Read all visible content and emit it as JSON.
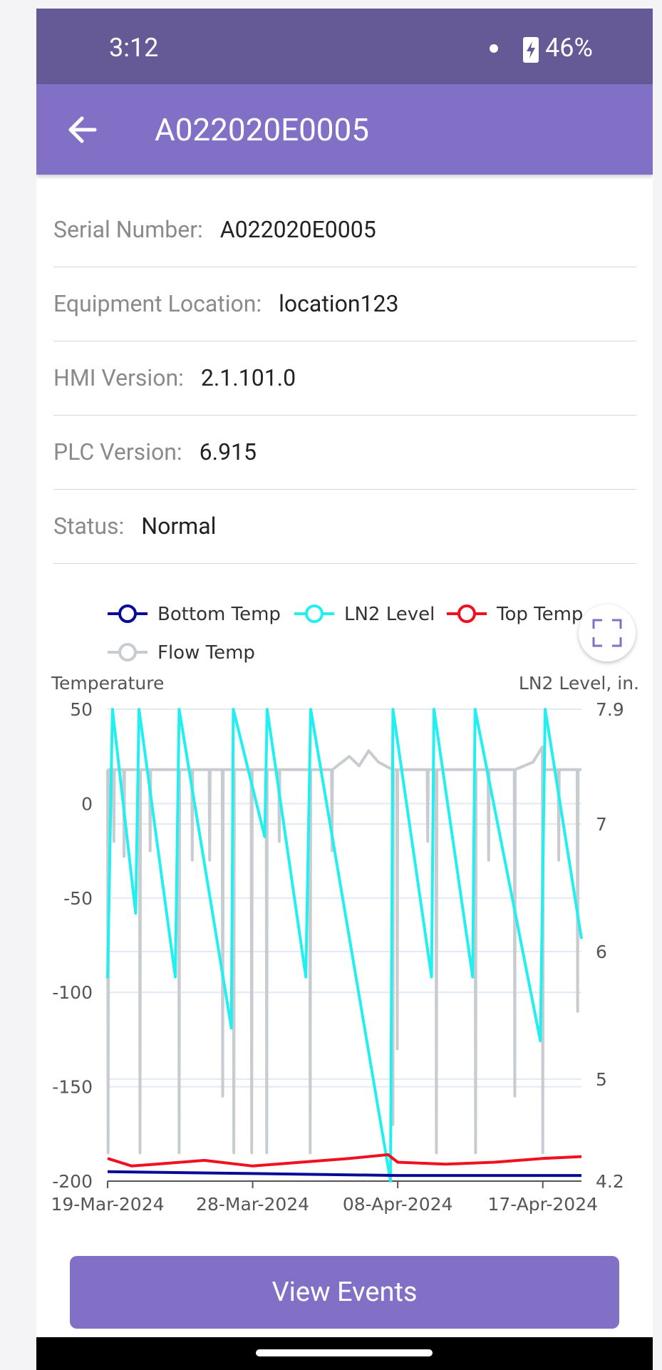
{
  "status_bar": {
    "time": "3:12",
    "battery": "46%"
  },
  "app_bar": {
    "title": "A022020E0005"
  },
  "details": [
    {
      "label": "Serial Number:",
      "value": "A022020E0005"
    },
    {
      "label": "Equipment Location:",
      "value": "location123"
    },
    {
      "label": "HMI Version:",
      "value": "2.1.101.0"
    },
    {
      "label": "PLC Version:",
      "value": "6.915"
    },
    {
      "label": "Status:",
      "value": "Normal"
    }
  ],
  "chart_data": {
    "type": "line",
    "ylabel": "Temperature",
    "y2label": "LN2 Level, in.",
    "xlim": [
      0,
      98
    ],
    "xticks": [
      {
        "value": 0,
        "label": "19-Mar-2024"
      },
      {
        "value": 30,
        "label": "28-Mar-2024"
      },
      {
        "value": 60,
        "label": "08-Apr-2024"
      },
      {
        "value": 90,
        "label": "17-Apr-2024"
      }
    ],
    "ylim": [
      -200,
      50
    ],
    "yticks": [
      50,
      0,
      -50,
      -100,
      -150,
      -200
    ],
    "y2lim": [
      4.2,
      7.9
    ],
    "y2ticks": [
      7.9,
      7,
      6,
      5,
      4.2
    ],
    "grid": true,
    "series": [
      {
        "name": "Bottom Temp",
        "color": "#0a0a96",
        "x": [
          0,
          30,
          60,
          90,
          98
        ],
        "values": [
          -195,
          -196,
          -197,
          -197,
          -197
        ]
      },
      {
        "name": "LN2 Level",
        "color": "#22f0f0",
        "axis": "y2",
        "x": [
          0,
          1,
          5.8,
          6.5,
          14,
          14.8,
          25.6,
          26,
          32.5,
          33,
          41,
          42,
          58.5,
          59,
          67,
          67.5,
          75.5,
          76,
          89.5,
          90.5,
          98
        ],
        "values": [
          5.79,
          7.9,
          6.3,
          7.9,
          5.8,
          7.9,
          5.4,
          7.9,
          6.9,
          7.9,
          5.8,
          7.9,
          4.2,
          7.9,
          5.8,
          7.9,
          5.8,
          7.9,
          5.3,
          7.9,
          6.1
        ]
      },
      {
        "name": "Top Temp",
        "color": "#f01020",
        "x": [
          0,
          5,
          10,
          20,
          30,
          40,
          50,
          58,
          60,
          70,
          80,
          90,
          98
        ],
        "values": [
          -188,
          -192,
          -191,
          -189,
          -192,
          -190,
          -188,
          -186,
          -190,
          -191,
          -190,
          -188,
          -187
        ]
      },
      {
        "name": "Flow Temp",
        "color": "#c8ccd0",
        "x": [
          0,
          0.1,
          0.2,
          1.2,
          1.3,
          1.4,
          3.3,
          3.4,
          3.5,
          6.6,
          6.7,
          6.8,
          8.7,
          8.8,
          8.9,
          14.7,
          14.8,
          14.9,
          17.4,
          17.5,
          17.6,
          21,
          21.1,
          21.2,
          23.7,
          23.8,
          23.9,
          26,
          26.1,
          26.2,
          29.7,
          29.8,
          29.9,
          32.8,
          32.9,
          33,
          35.4,
          35.5,
          35.6,
          41.8,
          41.9,
          42,
          46.3,
          46.4,
          46.5,
          50,
          52,
          54,
          56,
          58.9,
          59,
          59.1,
          59.8,
          59.9,
          60,
          66.1,
          66.2,
          66.3,
          67.9,
          68,
          68.1,
          76,
          76.1,
          76.2,
          78.7,
          78.8,
          78.9,
          84.1,
          84.2,
          84.3,
          88,
          89.9,
          90,
          90.1,
          93.2,
          93.3,
          93.4,
          97.1,
          97.2,
          97.3,
          98
        ],
        "values": [
          18,
          -185,
          18,
          18,
          -20,
          18,
          18,
          -28,
          18,
          18,
          -185,
          18,
          18,
          -25,
          18,
          18,
          -185,
          18,
          18,
          -30,
          18,
          18,
          -30,
          18,
          18,
          -155,
          18,
          18,
          -185,
          18,
          18,
          -185,
          18,
          18,
          -185,
          18,
          18,
          -20,
          18,
          18,
          -185,
          18,
          18,
          -25,
          18,
          25,
          20,
          28,
          22,
          18,
          -170,
          18,
          18,
          -130,
          18,
          18,
          -20,
          18,
          18,
          -185,
          18,
          18,
          -185,
          18,
          18,
          -30,
          18,
          18,
          -155,
          18,
          22,
          30,
          -185,
          18,
          18,
          -30,
          18,
          18,
          -110,
          18,
          18
        ]
      }
    ]
  },
  "button": {
    "label": "View Events"
  }
}
